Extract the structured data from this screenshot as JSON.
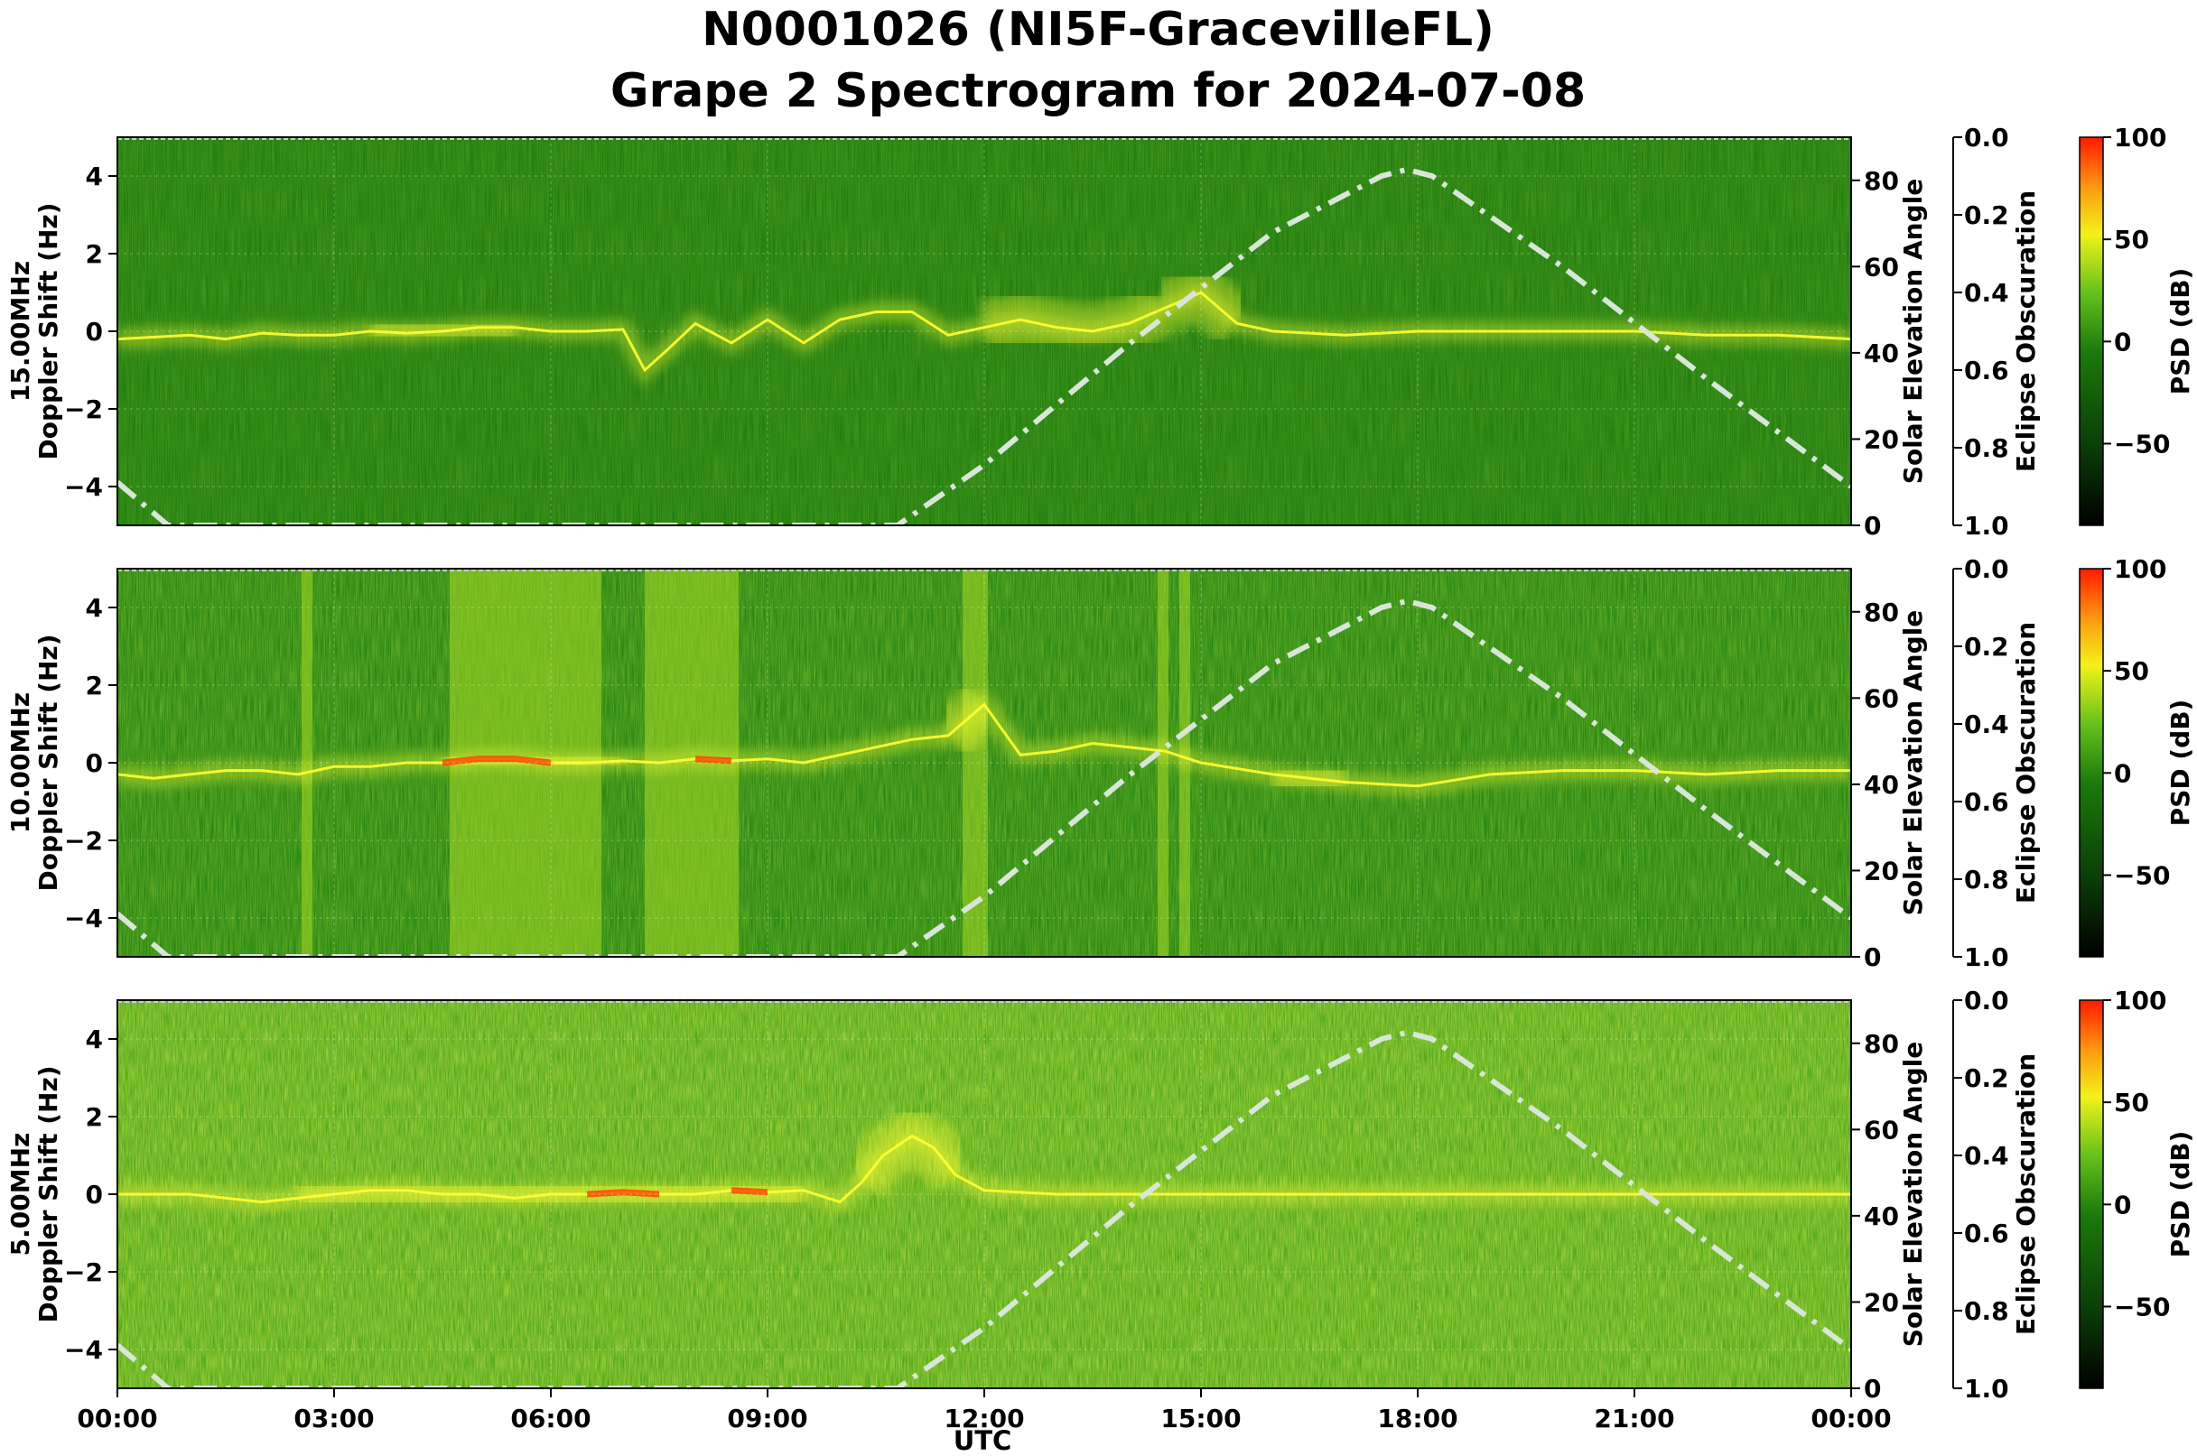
{
  "title_line1": "N0001026 (NI5F-GracevilleFL)",
  "title_line2": "Grape 2 Spectrogram for 2024-07-08",
  "xlabel": "UTC",
  "x_tick_labels": [
    "00:00",
    "03:00",
    "06:00",
    "09:00",
    "12:00",
    "15:00",
    "18:00",
    "21:00",
    "00:00"
  ],
  "colors": {
    "background": "#1d7a0c",
    "solar_curve": "#d8e6d8",
    "signal_bright": "#ffff33",
    "signal_hot": "#ff3300"
  },
  "chart_data": [
    {
      "type": "heatmap",
      "frequency_label": "15.00MHz",
      "ylabel": "Doppler Shift (Hz)",
      "ylim": [
        -5,
        5
      ],
      "y_ticks": [
        4,
        2,
        0,
        -2,
        -4
      ],
      "y_tick_labels": [
        "4",
        "2",
        "0",
        "−2",
        "−4"
      ],
      "xlim_hours": [
        0,
        24
      ],
      "grid": true,
      "background_level": "low",
      "secondary_axis": {
        "label": "Solar Elevation Angle",
        "ylim": [
          0,
          90
        ],
        "ticks": [
          0,
          20,
          40,
          60,
          80
        ],
        "tick_labels": [
          "0",
          "20",
          "40",
          "60",
          "80"
        ]
      },
      "eclipse_axis": {
        "label": "Eclipse Obscuration",
        "ylim": [
          1.0,
          0.0
        ],
        "ticks": [
          0.0,
          0.2,
          0.4,
          0.6,
          0.8,
          1.0
        ],
        "tick_labels": [
          "0.0",
          "0.2",
          "0.4",
          "0.6",
          "0.8",
          "1.0"
        ]
      },
      "colorbar": {
        "label": "PSD (dB)",
        "range": [
          -90,
          100
        ],
        "ticks": [
          100,
          50,
          0,
          -50
        ],
        "tick_labels": [
          "100",
          "50",
          "0",
          "−50"
        ]
      },
      "doppler_trace": [
        [
          0,
          -0.2
        ],
        [
          0.5,
          -0.15
        ],
        [
          1,
          -0.1
        ],
        [
          1.5,
          -0.2
        ],
        [
          2,
          -0.05
        ],
        [
          2.5,
          -0.1
        ],
        [
          3,
          -0.1
        ],
        [
          3.5,
          0
        ],
        [
          4,
          -0.05
        ],
        [
          4.5,
          0
        ],
        [
          5,
          0.1
        ],
        [
          5.5,
          0.1
        ],
        [
          6,
          0
        ],
        [
          6.5,
          0
        ],
        [
          7,
          0.05
        ],
        [
          7.3,
          -1.0
        ],
        [
          7.6,
          -0.5
        ],
        [
          8,
          0.2
        ],
        [
          8.5,
          -0.3
        ],
        [
          9,
          0.3
        ],
        [
          9.5,
          -0.3
        ],
        [
          10,
          0.3
        ],
        [
          10.5,
          0.5
        ],
        [
          11,
          0.5
        ],
        [
          11.5,
          -0.1
        ],
        [
          12,
          0.1
        ],
        [
          12.5,
          0.3
        ],
        [
          13,
          0.1
        ],
        [
          13.5,
          0.0
        ],
        [
          14,
          0.2
        ],
        [
          14.5,
          0.6
        ],
        [
          15,
          1.0
        ],
        [
          15.5,
          0.2
        ],
        [
          16,
          0.0
        ],
        [
          17,
          -0.1
        ],
        [
          18,
          0
        ],
        [
          19,
          0
        ],
        [
          20,
          0
        ],
        [
          21,
          0
        ],
        [
          22,
          -0.1
        ],
        [
          23,
          -0.1
        ],
        [
          24,
          -0.2
        ]
      ],
      "bright_segments": [
        [
          3.5,
          5.5
        ],
        [
          10.5,
          11.2
        ],
        [
          12,
          14.5
        ],
        [
          14.5,
          15.5
        ]
      ],
      "hot_segments": [],
      "vertical_bands": []
    },
    {
      "type": "heatmap",
      "frequency_label": "10.00MHz",
      "ylabel": "Doppler Shift (Hz)",
      "ylim": [
        -5,
        5
      ],
      "y_ticks": [
        4,
        2,
        0,
        -2,
        -4
      ],
      "y_tick_labels": [
        "4",
        "2",
        "0",
        "−2",
        "−4"
      ],
      "xlim_hours": [
        0,
        24
      ],
      "grid": true,
      "background_level": "mid",
      "secondary_axis": {
        "label": "Solar Elevation Angle",
        "ylim": [
          0,
          90
        ],
        "ticks": [
          0,
          20,
          40,
          60,
          80
        ],
        "tick_labels": [
          "0",
          "20",
          "40",
          "60",
          "80"
        ]
      },
      "eclipse_axis": {
        "label": "Eclipse Obscuration",
        "ylim": [
          1.0,
          0.0
        ],
        "ticks": [
          0.0,
          0.2,
          0.4,
          0.6,
          0.8,
          1.0
        ],
        "tick_labels": [
          "0.0",
          "0.2",
          "0.4",
          "0.6",
          "0.8",
          "1.0"
        ]
      },
      "colorbar": {
        "label": "PSD (dB)",
        "range": [
          -90,
          100
        ],
        "ticks": [
          100,
          50,
          0,
          -50
        ],
        "tick_labels": [
          "100",
          "50",
          "0",
          "−50"
        ]
      },
      "doppler_trace": [
        [
          0,
          -0.3
        ],
        [
          0.5,
          -0.4
        ],
        [
          1,
          -0.3
        ],
        [
          1.5,
          -0.2
        ],
        [
          2,
          -0.2
        ],
        [
          2.5,
          -0.3
        ],
        [
          3,
          -0.1
        ],
        [
          3.5,
          -0.1
        ],
        [
          4,
          0
        ],
        [
          4.5,
          0
        ],
        [
          5,
          0.1
        ],
        [
          5.5,
          0.1
        ],
        [
          6,
          0
        ],
        [
          6.5,
          0
        ],
        [
          7,
          0.05
        ],
        [
          7.5,
          0.0
        ],
        [
          8,
          0.1
        ],
        [
          8.5,
          0.05
        ],
        [
          9,
          0.1
        ],
        [
          9.5,
          0.0
        ],
        [
          10,
          0.2
        ],
        [
          10.5,
          0.4
        ],
        [
          11,
          0.6
        ],
        [
          11.5,
          0.7
        ],
        [
          12,
          1.5
        ],
        [
          12.5,
          0.2
        ],
        [
          13,
          0.3
        ],
        [
          13.5,
          0.5
        ],
        [
          14,
          0.4
        ],
        [
          14.5,
          0.3
        ],
        [
          15,
          0
        ],
        [
          16,
          -0.3
        ],
        [
          17,
          -0.5
        ],
        [
          18,
          -0.6
        ],
        [
          19,
          -0.3
        ],
        [
          20,
          -0.2
        ],
        [
          21,
          -0.2
        ],
        [
          22,
          -0.3
        ],
        [
          23,
          -0.2
        ],
        [
          24,
          -0.2
        ]
      ],
      "bright_segments": [
        [
          4.5,
          7
        ],
        [
          8.5,
          8.6
        ],
        [
          11.5,
          12.2
        ],
        [
          15.5,
          17.5
        ]
      ],
      "hot_segments": [
        [
          4.5,
          6.0
        ],
        [
          8.0,
          8.6
        ]
      ],
      "vertical_bands": [
        [
          4.6,
          6.7
        ],
        [
          7.3,
          8.6
        ],
        [
          11.7,
          12.05
        ],
        [
          2.55,
          2.7
        ],
        [
          14.4,
          14.55
        ],
        [
          14.7,
          14.85
        ]
      ]
    },
    {
      "type": "heatmap",
      "frequency_label": "5.00MHz",
      "ylabel": "Doppler Shift (Hz)",
      "ylim": [
        -5,
        5
      ],
      "y_ticks": [
        4,
        2,
        0,
        -2,
        -4
      ],
      "y_tick_labels": [
        "4",
        "2",
        "0",
        "−2",
        "−4"
      ],
      "xlim_hours": [
        0,
        24
      ],
      "grid": true,
      "background_level": "high",
      "secondary_axis": {
        "label": "Solar Elevation Angle",
        "ylim": [
          0,
          90
        ],
        "ticks": [
          0,
          20,
          40,
          60,
          80
        ],
        "tick_labels": [
          "0",
          "20",
          "40",
          "60",
          "80"
        ]
      },
      "eclipse_axis": {
        "label": "Eclipse Obscuration",
        "ylim": [
          1.0,
          0.0
        ],
        "ticks": [
          0.0,
          0.2,
          0.4,
          0.6,
          0.8,
          1.0
        ],
        "tick_labels": [
          "0.0",
          "0.2",
          "0.4",
          "0.6",
          "0.8",
          "1.0"
        ]
      },
      "colorbar": {
        "label": "PSD (dB)",
        "range": [
          -90,
          100
        ],
        "ticks": [
          100,
          50,
          0,
          -50
        ],
        "tick_labels": [
          "100",
          "50",
          "0",
          "−50"
        ]
      },
      "doppler_trace": [
        [
          0,
          0
        ],
        [
          1,
          0
        ],
        [
          1.5,
          -0.1
        ],
        [
          2,
          -0.2
        ],
        [
          2.5,
          -0.1
        ],
        [
          3,
          0
        ],
        [
          3.5,
          0.1
        ],
        [
          4,
          0.1
        ],
        [
          4.5,
          0
        ],
        [
          5,
          0
        ],
        [
          5.5,
          -0.1
        ],
        [
          6,
          0
        ],
        [
          6.5,
          0
        ],
        [
          7,
          0.05
        ],
        [
          7.5,
          0
        ],
        [
          8,
          0
        ],
        [
          8.5,
          0.1
        ],
        [
          9,
          0.05
        ],
        [
          9.5,
          0.1
        ],
        [
          10,
          -0.2
        ],
        [
          10.3,
          0.3
        ],
        [
          10.6,
          1.0
        ],
        [
          11,
          1.5
        ],
        [
          11.3,
          1.2
        ],
        [
          11.6,
          0.5
        ],
        [
          12,
          0.1
        ],
        [
          13,
          0
        ],
        [
          24,
          0
        ]
      ],
      "bright_segments": [
        [
          2.5,
          9.5
        ],
        [
          10.3,
          11.6
        ]
      ],
      "hot_segments": [
        [
          6.5,
          7.5
        ],
        [
          8.5,
          9.2
        ]
      ],
      "vertical_bands": []
    }
  ],
  "solar_elevation_curve": [
    [
      0,
      10
    ],
    [
      0.7,
      0
    ],
    [
      10.8,
      0
    ],
    [
      12,
      14
    ],
    [
      14,
      42
    ],
    [
      16,
      68
    ],
    [
      17.5,
      81
    ],
    [
      17.85,
      82.5
    ],
    [
      18.2,
      81
    ],
    [
      20,
      60
    ],
    [
      22,
      34
    ],
    [
      24,
      9
    ]
  ]
}
